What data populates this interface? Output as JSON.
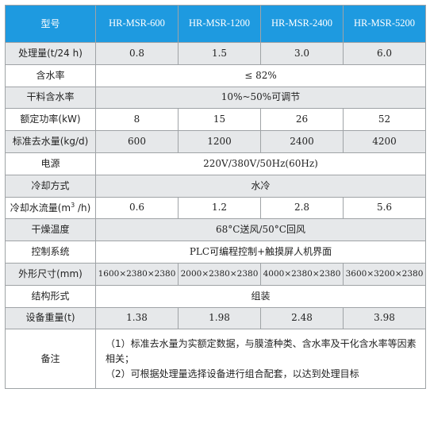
{
  "header": {
    "label": "型号",
    "models": [
      "HR-MSR-600",
      "HR-MSR-1200",
      "HR-MSR-2400",
      "HR-MSR-5200"
    ]
  },
  "rows": [
    {
      "label": "处理量(t/24 h)",
      "values": [
        "0.8",
        "1.5",
        "3.0",
        "6.0"
      ]
    },
    {
      "label": "含水率",
      "merged": "≤ 82%"
    },
    {
      "label": "干料含水率",
      "merged": "10%~50%可调节"
    },
    {
      "label": "额定功率(kW)",
      "values": [
        "8",
        "15",
        "26",
        "52"
      ]
    },
    {
      "label": "标准去水量(kg/d)",
      "values": [
        "600",
        "1200",
        "2400",
        "4200"
      ]
    },
    {
      "label": "电源",
      "merged": "220V/380V/50Hz(60Hz)"
    },
    {
      "label": "冷却方式",
      "merged": "水冷"
    },
    {
      "label_prefix": "冷却水流量(m",
      "label_sup": "3",
      "label_suffix": " /h)",
      "values": [
        "0.6",
        "1.2",
        "2.8",
        "5.6"
      ]
    },
    {
      "label": "干燥温度",
      "merged": "68°C送风/50°C回风"
    },
    {
      "label": "控制系统",
      "merged": "PLC可编程控制+触摸屏人机界面"
    },
    {
      "label": "外形尺寸(mm)",
      "values": [
        "1600×2380×2380",
        "2000×2380×2380",
        "4000×2380×2380",
        "3600×3200×2380"
      ]
    },
    {
      "label": "结构形式",
      "merged": "组装"
    },
    {
      "label": "设备重量(t)",
      "values": [
        "1.38",
        "1.98",
        "2.48",
        "3.98"
      ]
    }
  ],
  "notes": {
    "label": "备注",
    "line1": "（1）标准去水量为实额定数据，与膜渣种类、含水率及干化含水率等因素相关；",
    "line2": "（2）可根据处理量选择设备进行组合配套，以达到处理目标"
  }
}
